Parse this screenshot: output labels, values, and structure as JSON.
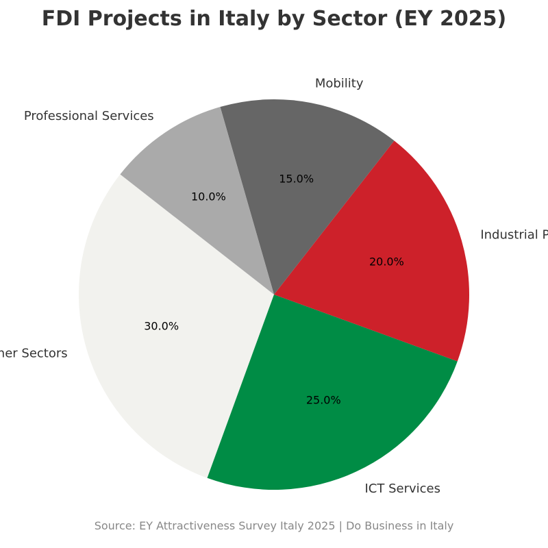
{
  "chart_data": {
    "type": "pie",
    "title": "FDI Projects in Italy by Sector (EY 2025)",
    "source": "Source: EY Attractiveness Survey Italy 2025 | Do Business in Italy",
    "start_angle_deg": 142,
    "direction": "counterclockwise",
    "slices": [
      {
        "label": "Other Sectors",
        "value": 30.0,
        "pct_label": "30.0%",
        "color": "#f2f2ee"
      },
      {
        "label": "ICT Services",
        "value": 25.0,
        "pct_label": "25.0%",
        "color": "#008c45"
      },
      {
        "label": "Industrial Products",
        "value": 20.0,
        "pct_label": "20.0%",
        "color": "#cd212a"
      },
      {
        "label": "Mobility",
        "value": 15.0,
        "pct_label": "15.0%",
        "color": "#666666"
      },
      {
        "label": "Professional Services",
        "value": 10.0,
        "pct_label": "10.0%",
        "color": "#aaaaaa"
      }
    ]
  }
}
